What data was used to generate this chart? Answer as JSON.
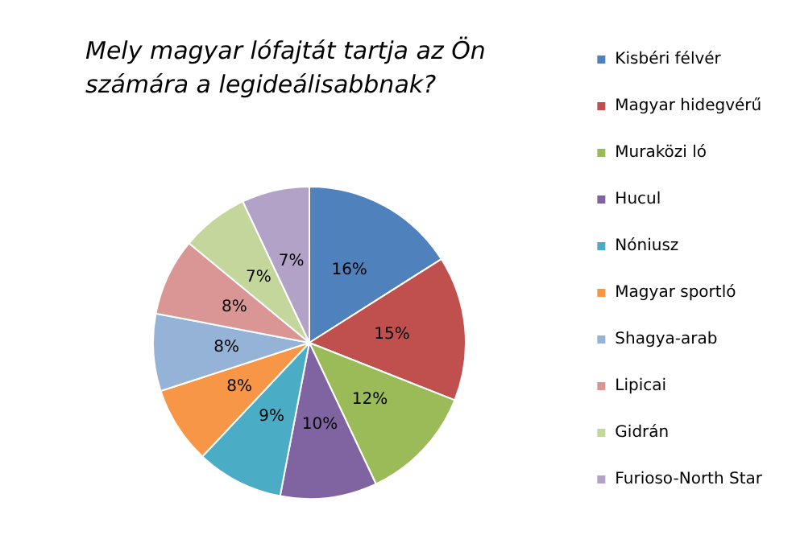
{
  "chart_data": {
    "type": "pie",
    "title": "Mely magyar lófajtát tartja az Ön számára a legideálisabbnak?",
    "categories": [
      "Kisbéri félvér",
      "Magyar hidegvérű",
      "Muraközi ló",
      "Hucul",
      "Nóniusz",
      "Magyar sportló",
      "Shagya-arab",
      "Lipicai",
      "Gidrán",
      "Furioso-North Star"
    ],
    "values": [
      16,
      15,
      12,
      10,
      9,
      8,
      8,
      8,
      7,
      7
    ],
    "value_labels": [
      "16%",
      "15%",
      "12%",
      "10%",
      "9%",
      "8%",
      "8%",
      "8%",
      "7%",
      "7%"
    ],
    "colors": [
      "#4f81bd",
      "#c0504d",
      "#9bbb59",
      "#8064a2",
      "#4bacc6",
      "#f79646",
      "#95b3d7",
      "#d99694",
      "#c3d69b",
      "#b3a2c7"
    ],
    "legend": "right"
  }
}
